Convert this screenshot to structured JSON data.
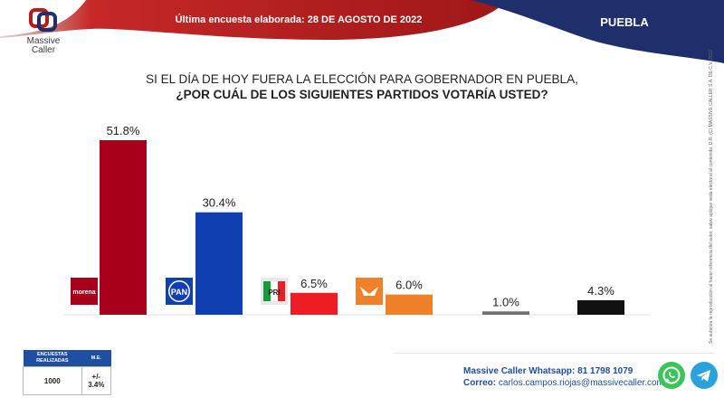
{
  "header": {
    "brand_line1": "Massive",
    "brand_line2": "Caller",
    "survey_date": "Última encuesta elaborada: 28 DE AGOSTO DE 2022",
    "state": "PUEBLA"
  },
  "question": {
    "line1": "SI EL DÍA DE HOY FUERA LA ELECCIÓN PARA GOBERNADOR EN PUEBLA,",
    "line2": "¿POR CUÁL DE LOS SIGUIENTES PARTIDOS VOTARÍA USTED?"
  },
  "colors": {
    "banner_red": "#b71c1c",
    "banner_navy": "#1f2f6b",
    "morena": "#a8001c",
    "pan": "#0f3fb0",
    "pri": "#ee1c25",
    "mc": "#f0812b",
    "other": "#707070",
    "none": "#111111"
  },
  "chart_data": {
    "type": "bar",
    "categories": [
      "morena",
      "PAN",
      "PRI",
      "MOVIMIENTO CIUDADANO",
      "",
      ""
    ],
    "values": [
      51.8,
      30.4,
      6.5,
      6.0,
      1.0,
      4.3
    ],
    "value_labels": [
      "51.8%",
      "30.4%",
      "6.5%",
      "6.0%",
      "1.0%",
      "4.3%"
    ],
    "logo_icons": [
      "morena-logo-icon",
      "pan-logo-icon",
      "pri-logo-icon",
      "mc-logo-icon",
      "",
      ""
    ],
    "bar_colors": [
      "#a8001c",
      "#0f3fb0",
      "#ee1c25",
      "#f0812b",
      "#707070",
      "#111111"
    ],
    "title": "",
    "xlabel": "",
    "ylabel": "",
    "ylim": [
      0,
      55
    ]
  },
  "logo_text": {
    "morena": "morena",
    "pan": "PAN",
    "pri": "PRI"
  },
  "side_note": "Se autoriza la reproducción al hacer referencia del autor, salvo aplique veda electoral al contenido. D.R. (C) MASSIVE CALLER S.A. DE C.V. 2022",
  "survey_table": {
    "col1_header": "ENCUESTAS REALIZADAS",
    "col2_header": "M.E.",
    "col1_value": "1000",
    "col2_value": "+/- 3.4%"
  },
  "contact": {
    "whatsapp_label": "Massive Caller Whatsapp:",
    "whatsapp_value": "81 1798 1079",
    "email_label": "Correo:",
    "email_value": "carlos.campos.riojas@massivecaller.com"
  }
}
